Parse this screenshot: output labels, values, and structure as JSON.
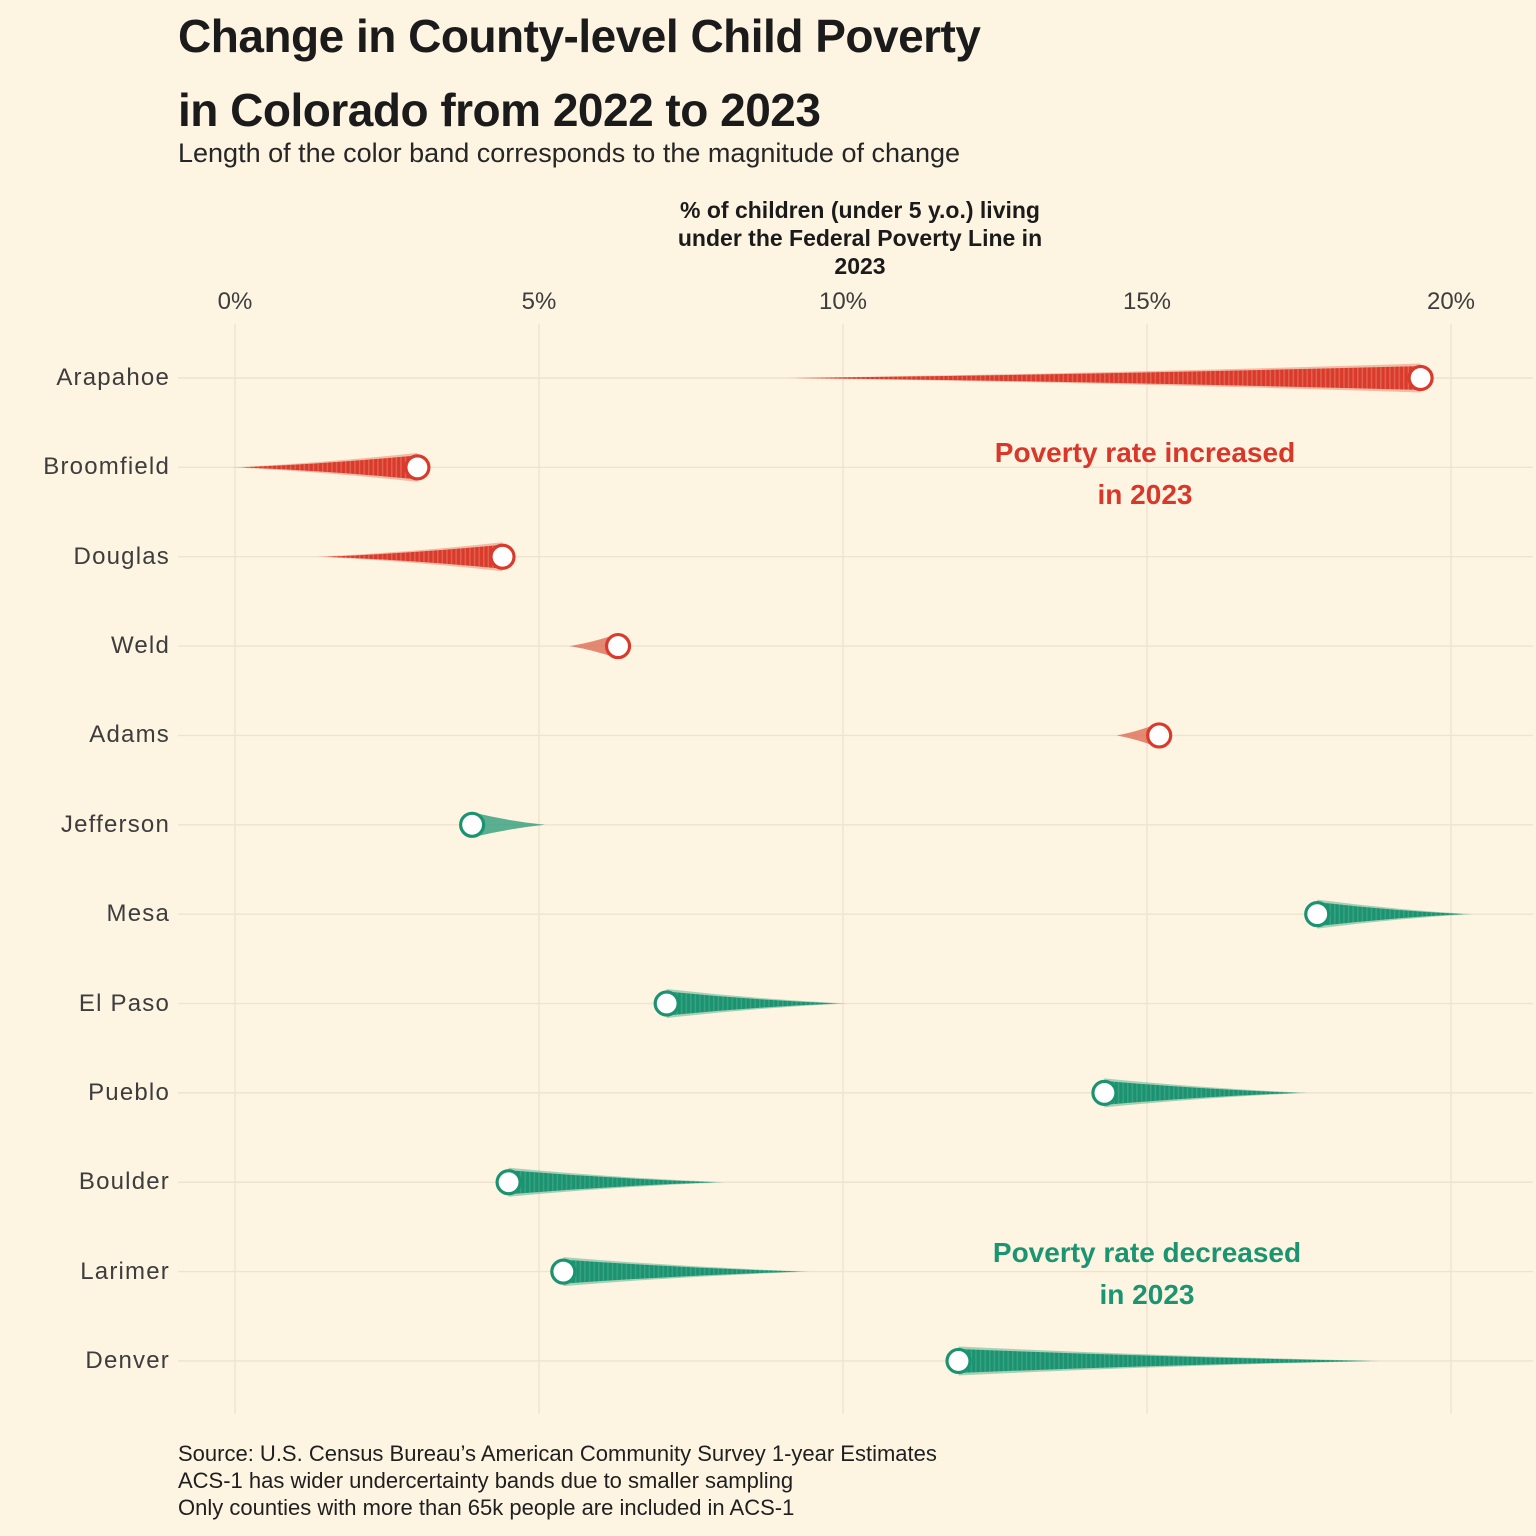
{
  "header": {
    "title_line1": "Change in County-level Child Poverty",
    "title_line2": "in Colorado from 2022 to 2023",
    "subtitle": "Length of the color band corresponds to the magnitude of change"
  },
  "annotations": {
    "increased": {
      "line1": "Poverty rate increased",
      "line2": "in 2023",
      "color": "#d9372a"
    },
    "decreased": {
      "line1": "Poverty rate decreased",
      "line2": "in 2023",
      "color": "#1a9471"
    }
  },
  "footer": {
    "source_line1": "Source: U.S. Census Bureau’s American Community Survey 1-year Estimates",
    "source_line2": "ACS-1 has wider undercertainty bands due to smaller sampling",
    "source_line3": "Only counties with more than 65k people are included in ACS-1"
  },
  "colors": {
    "background": "#fdf4e2",
    "increase_core": "#d93a2b",
    "increase_stripe": "#e2604e",
    "increase_halo": "#df6d55",
    "decrease_core": "#1b9371",
    "decrease_stripe": "#37a181",
    "decrease_halo": "#2f9e7c",
    "gridline": "#ede3cf",
    "marker_fill": "#ffffff"
  },
  "chart_data": {
    "type": "comet",
    "orientation": "horizontal",
    "title": "Change in County-level Child Poverty in Colorado from 2022 to 2023",
    "subtitle": "Length of the color band corresponds to the magnitude of change",
    "marker_meaning": "white circle = 2023 rate, band tail = 2022 rate, band length = magnitude of change",
    "x_axis": {
      "title_line1": "% of children (under 5 y.o.) living",
      "title_line2": "under the Federal Poverty Line in 2023",
      "ticks": [
        "0%",
        "5%",
        "10%",
        "15%",
        "20%"
      ],
      "tick_values": [
        0,
        5,
        10,
        15,
        20
      ],
      "range": [
        0,
        20
      ],
      "unit": "percent"
    },
    "grid": true,
    "legend": "none",
    "series": [
      {
        "county": "Arapahoe",
        "rate_2022": 9.2,
        "rate_2023": 19.5,
        "direction": "increased"
      },
      {
        "county": "Broomfield",
        "rate_2022": 0.1,
        "rate_2023": 3.0,
        "direction": "increased"
      },
      {
        "county": "Douglas",
        "rate_2022": 1.5,
        "rate_2023": 4.4,
        "direction": "increased"
      },
      {
        "county": "Weld",
        "rate_2022": 5.6,
        "rate_2023": 6.3,
        "direction": "increased"
      },
      {
        "county": "Adams",
        "rate_2022": 14.6,
        "rate_2023": 15.2,
        "direction": "increased"
      },
      {
        "county": "Jefferson",
        "rate_2022": 5.0,
        "rate_2023": 3.9,
        "direction": "decreased"
      },
      {
        "county": "Mesa",
        "rate_2022": 20.2,
        "rate_2023": 17.8,
        "direction": "decreased"
      },
      {
        "county": "El Paso",
        "rate_2022": 9.9,
        "rate_2023": 7.1,
        "direction": "decreased"
      },
      {
        "county": "Pueblo",
        "rate_2022": 17.5,
        "rate_2023": 14.3,
        "direction": "decreased"
      },
      {
        "county": "Boulder",
        "rate_2022": 7.9,
        "rate_2023": 4.5,
        "direction": "decreased"
      },
      {
        "county": "Larimer",
        "rate_2022": 9.3,
        "rate_2023": 5.4,
        "direction": "decreased"
      },
      {
        "county": "Denver",
        "rate_2022": 18.7,
        "rate_2023": 11.9,
        "direction": "decreased"
      }
    ]
  }
}
